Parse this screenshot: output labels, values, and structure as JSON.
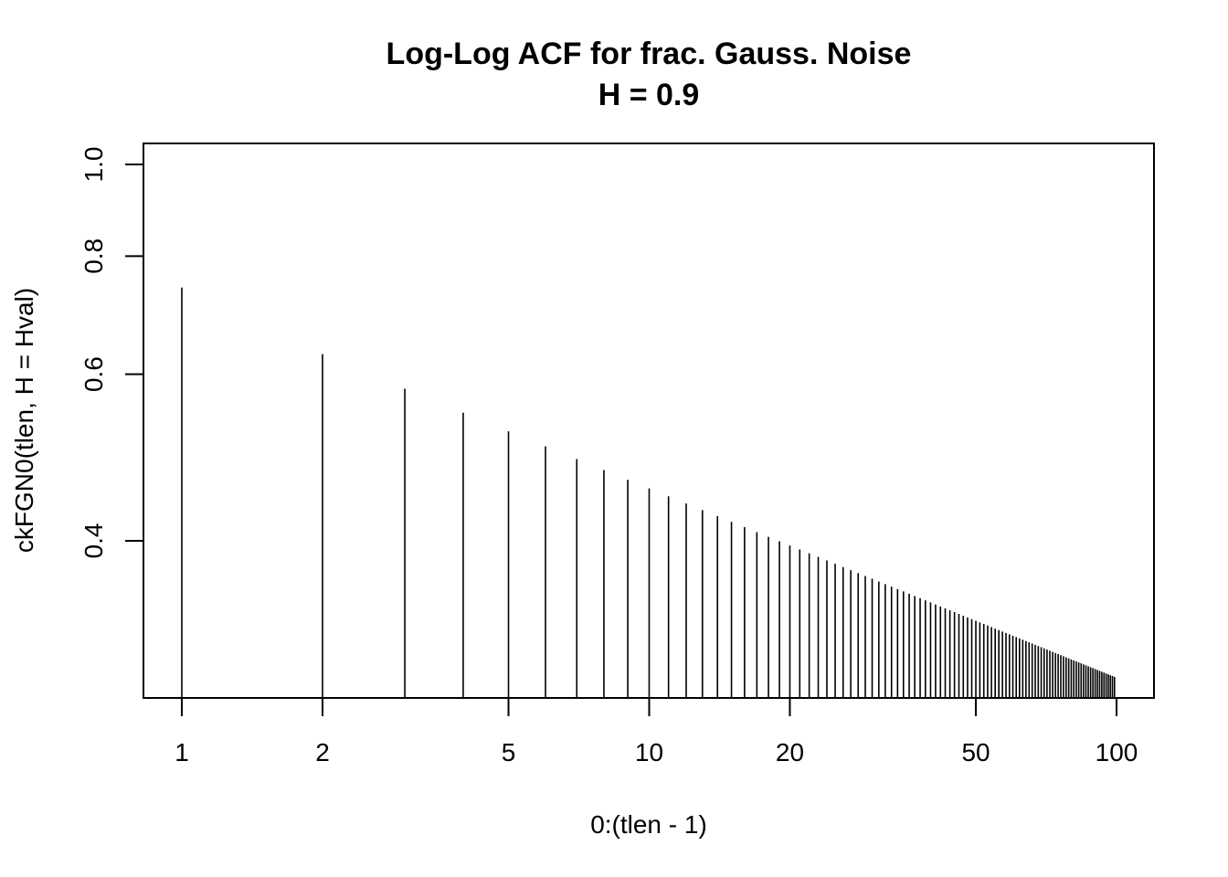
{
  "chart_data": {
    "type": "bar",
    "style": "vertical-lines",
    "title": "Log-Log ACF for frac. Gauss. Noise",
    "subtitle": "H = 0.9",
    "xlabel": "0:(tlen - 1)",
    "ylabel": "ckFGN0(tlen, H = Hval)",
    "x_scale": "log",
    "y_scale": "log",
    "xlim": [
      1,
      100
    ],
    "ylim": [
      0.3,
      1.0
    ],
    "x_ticks": [
      1,
      2,
      5,
      10,
      20,
      50,
      100
    ],
    "x_tick_labels": [
      "1",
      "2",
      "5",
      "10",
      "20",
      "50",
      "100"
    ],
    "y_ticks": [
      0.4,
      0.6,
      0.8,
      1.0
    ],
    "y_tick_labels": [
      "0.4",
      "0.6",
      "0.8",
      "1.0"
    ],
    "grid": false,
    "line_color": "#000000",
    "hurst": 0.9,
    "x_from": 1,
    "x_to": 99,
    "x_step": 1
  }
}
